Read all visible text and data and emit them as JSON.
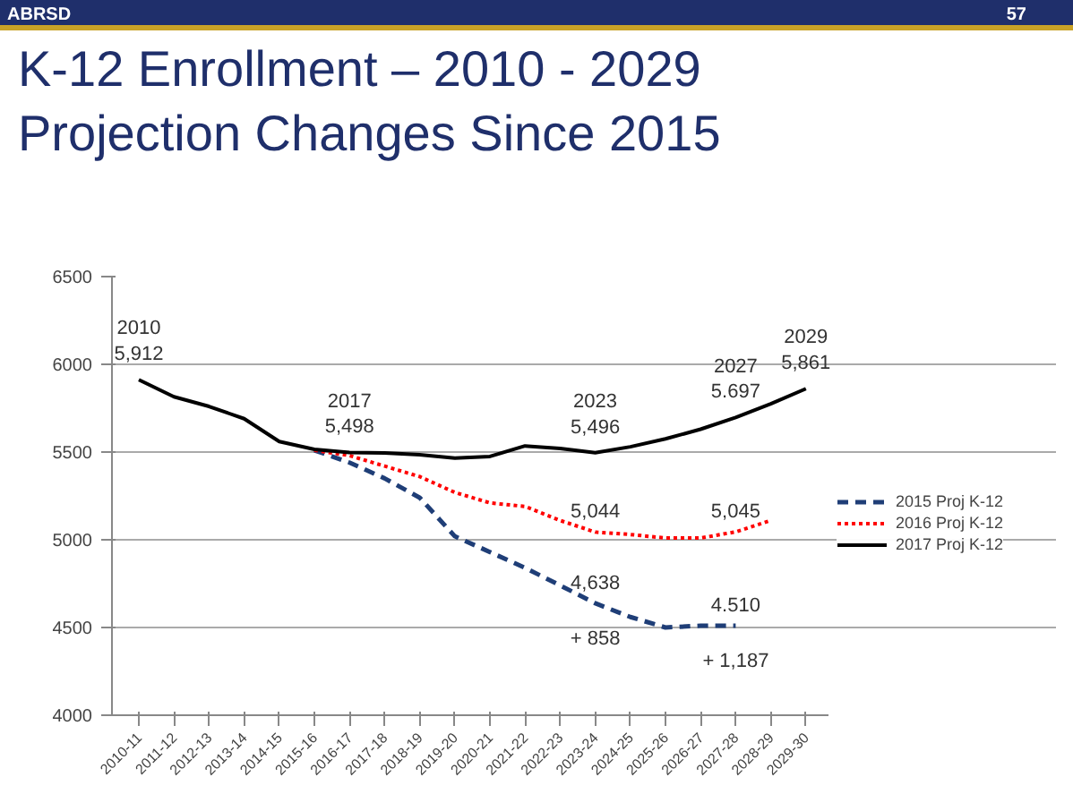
{
  "chart_data": {
    "type": "line",
    "title": "K-12 Enrollment  – 2010 - 2029\nProjection Changes Since 2015",
    "categories": [
      "2010-11",
      "2011-12",
      "2012-13",
      "2013-14",
      "2014-15",
      "2015-16",
      "2016-17",
      "2017-18",
      "2018-19",
      "2019-20",
      "2020-21",
      "2021-22",
      "2022-23",
      "2023-24",
      "2024-25",
      "2025-26",
      "2026-27",
      "2027-28",
      "2028-29",
      "2029-30"
    ],
    "series": [
      {
        "name": "2015 Proj K-12",
        "color": "#1f3e77",
        "line_style": "dashed",
        "values": [
          null,
          null,
          null,
          null,
          null,
          5510,
          5440,
          5350,
          5240,
          5020,
          4930,
          4840,
          4740,
          4638,
          4560,
          4500,
          4510,
          4510,
          null,
          null
        ]
      },
      {
        "name": "2016 Proj K-12",
        "color": "#ff0000",
        "line_style": "dotted",
        "values": [
          null,
          null,
          null,
          null,
          null,
          5510,
          5480,
          5420,
          5360,
          5270,
          5210,
          5190,
          5110,
          5044,
          5030,
          5010,
          5010,
          5045,
          5110,
          null
        ]
      },
      {
        "name": "2017 Proj K-12",
        "color": "#000000",
        "line_style": "solid",
        "values": [
          5912,
          5815,
          5760,
          5690,
          5560,
          5515,
          5498,
          5495,
          5485,
          5465,
          5475,
          5535,
          5520,
          5496,
          5530,
          5575,
          5630,
          5697,
          5775,
          5861
        ]
      }
    ],
    "ylim": [
      4000,
      6500
    ],
    "yticks": [
      4000,
      4500,
      5000,
      5500,
      6000,
      6500
    ],
    "grid": "y",
    "legend": "right",
    "marker": "none",
    "annotations": [
      "ABRSD",
      "57",
      {
        "text": "2010\n5,912",
        "x": "2010-11",
        "y": 5912
      },
      {
        "text": "2017\n5,498",
        "x": "2016-17",
        "y": 5498
      },
      {
        "text": "2023\n5,496",
        "x": "2023-24",
        "y": 5496
      },
      {
        "text": "2027\n5.697",
        "x": "2027-28",
        "y": 5697
      },
      {
        "text": "2029\n5,861",
        "x": "2029-30",
        "y": 5861
      },
      {
        "text": "5,044",
        "x": "2023-24",
        "y": 5044
      },
      {
        "text": "5,045",
        "x": "2027-28",
        "y": 5045
      },
      {
        "text": "4,638",
        "x": "2023-24",
        "y": 4638
      },
      {
        "text": "4.510",
        "x": "2027-28",
        "y": 4510
      },
      {
        "text": "+ 858",
        "x": "2023-24",
        "y": 4638
      },
      {
        "text": "+ 1,187",
        "x": "2027-28",
        "y": 4510
      }
    ]
  }
}
